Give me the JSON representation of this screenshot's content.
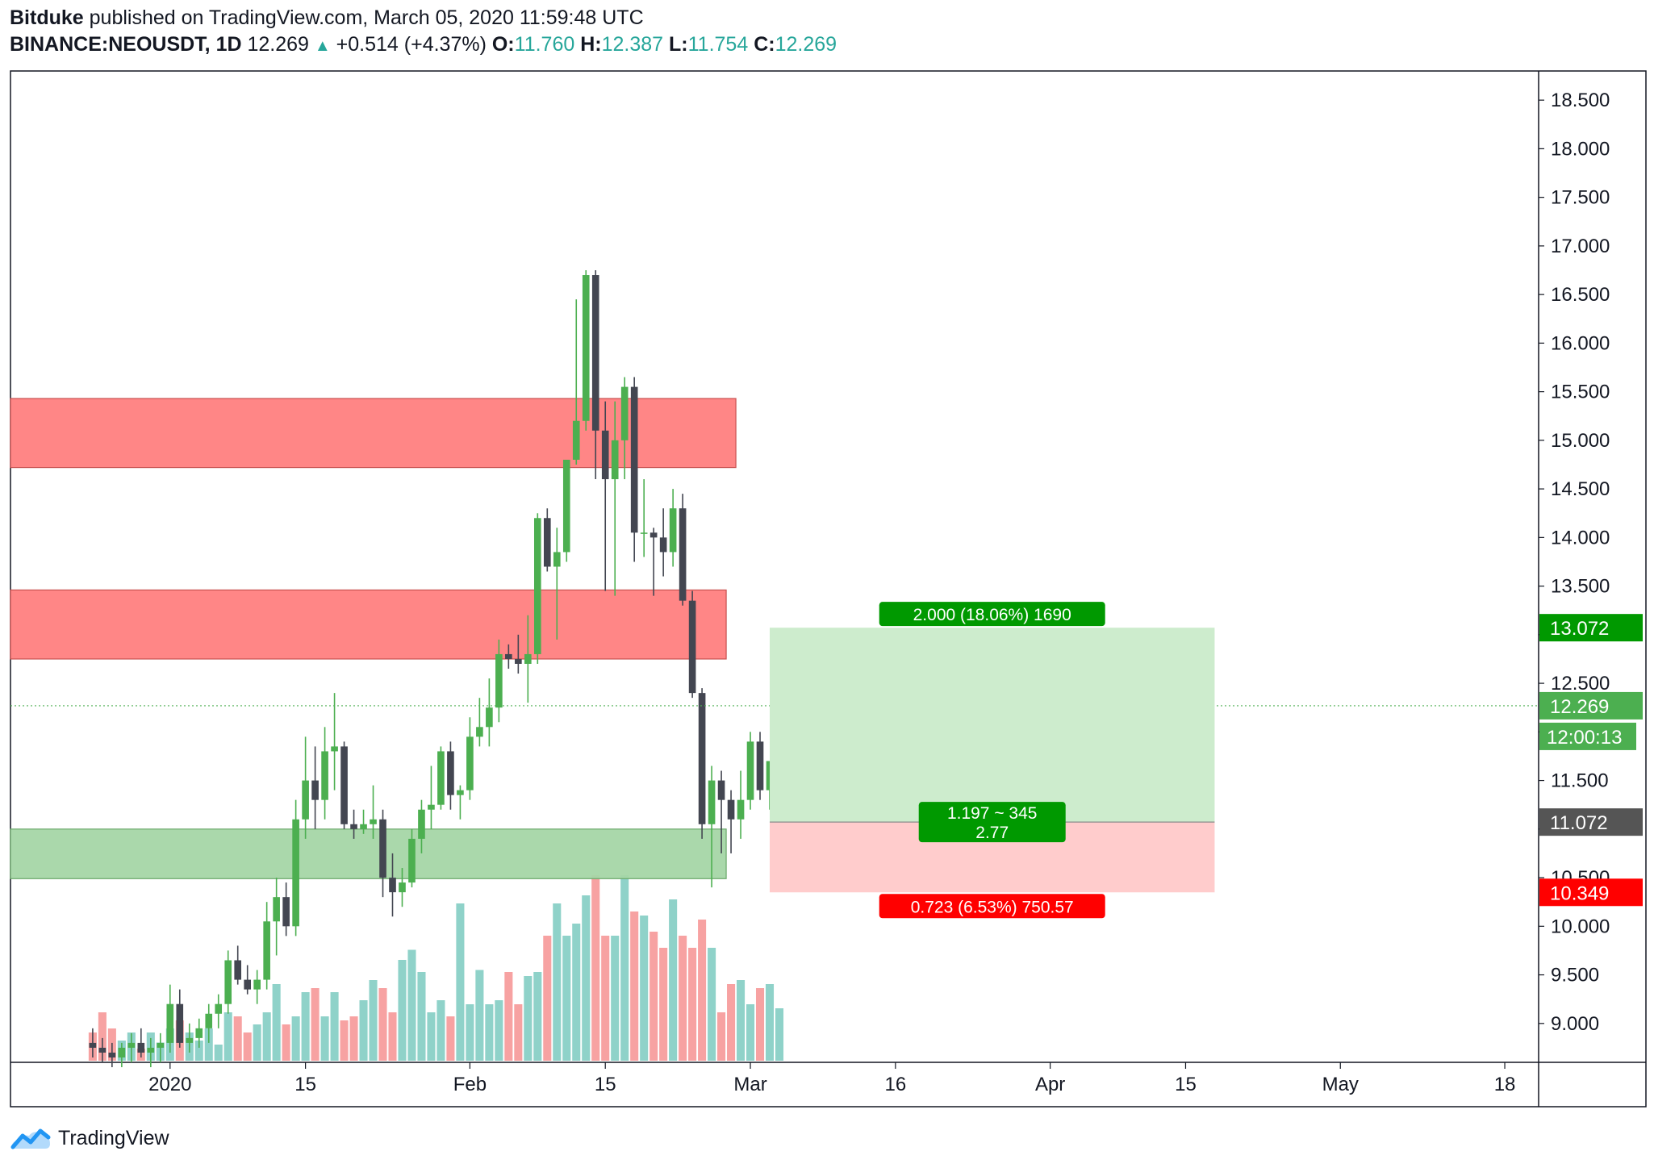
{
  "header": {
    "author": "Bitduke",
    "published_text": "published on TradingView.com, March 05, 2020 11:59:48 UTC",
    "symbol": "BINANCE:NEOUSDT, 1D",
    "last": "12.269",
    "change_arrow": "▲",
    "change": "+0.514 (+4.37%)",
    "o_label": "O:",
    "o": "11.760",
    "h_label": "H:",
    "h": "12.387",
    "l_label": "L:",
    "l": "11.754",
    "c_label": "C:",
    "c": "12.269"
  },
  "footer": {
    "brand": "TradingView",
    "logo_icon": "tradingview-cloud-icon"
  },
  "colors": {
    "bull": "#4caf50",
    "bear": "#434651",
    "vol_up": "#8fd2c9",
    "vol_down": "#f7a2a2",
    "zone_red": "#ff7f7f",
    "zone_green": "#a5d6a7",
    "target_fill": "#cdeccd",
    "stop_fill": "#ffcccc",
    "label_green": "#009900",
    "label_red": "#ff0000",
    "price_label": "#4caf50",
    "entry_label": "#555555"
  },
  "chart_data": {
    "type": "candlestick",
    "title": "BINANCE:NEOUSDT, 1D",
    "ylim": [
      8.6,
      18.8
    ],
    "y_ticks": [
      "18.500",
      "18.000",
      "17.500",
      "17.000",
      "16.500",
      "16.000",
      "15.500",
      "15.000",
      "14.500",
      "14.000",
      "13.500",
      "13.000",
      "12.500",
      "12.000",
      "11.500",
      "11.000",
      "10.500",
      "10.000",
      "9.500",
      "9.000"
    ],
    "x_ticks": [
      {
        "day": 8,
        "label": "2020"
      },
      {
        "day": 22,
        "label": "15"
      },
      {
        "day": 39,
        "label": "Feb"
      },
      {
        "day": 53,
        "label": "15"
      },
      {
        "day": 68,
        "label": "Mar"
      },
      {
        "day": 83,
        "label": "16"
      },
      {
        "day": 99,
        "label": "Apr"
      },
      {
        "day": 113,
        "label": "15"
      },
      {
        "day": 129,
        "label": "May"
      },
      {
        "day": 146,
        "label": "18"
      }
    ],
    "x_range_days": [
      -8.5,
      149.5
    ],
    "ohlc": [
      [
        8.8,
        8.95,
        8.65,
        8.75
      ],
      [
        8.75,
        8.85,
        8.6,
        8.7
      ],
      [
        8.7,
        8.8,
        8.55,
        8.65
      ],
      [
        8.65,
        8.8,
        8.55,
        8.75
      ],
      [
        8.75,
        8.9,
        8.6,
        8.8
      ],
      [
        8.8,
        8.95,
        8.65,
        8.7
      ],
      [
        8.7,
        8.85,
        8.55,
        8.75
      ],
      [
        8.75,
        8.9,
        8.6,
        8.8
      ],
      [
        8.8,
        9.4,
        8.7,
        9.2
      ],
      [
        9.2,
        9.35,
        8.75,
        8.8
      ],
      [
        8.8,
        9.0,
        8.7,
        8.85
      ],
      [
        8.85,
        9.05,
        8.75,
        8.95
      ],
      [
        8.95,
        9.2,
        8.8,
        9.1
      ],
      [
        9.1,
        9.3,
        8.95,
        9.2
      ],
      [
        9.2,
        9.75,
        9.1,
        9.65
      ],
      [
        9.65,
        9.8,
        9.4,
        9.45
      ],
      [
        9.45,
        9.6,
        9.3,
        9.35
      ],
      [
        9.35,
        9.55,
        9.2,
        9.45
      ],
      [
        9.45,
        10.25,
        9.35,
        10.05
      ],
      [
        10.05,
        10.5,
        9.7,
        10.3
      ],
      [
        10.3,
        10.45,
        9.9,
        10.0
      ],
      [
        10.0,
        11.3,
        9.9,
        11.1
      ],
      [
        11.1,
        11.95,
        10.9,
        11.5
      ],
      [
        11.5,
        11.85,
        11.0,
        11.3
      ],
      [
        11.3,
        12.05,
        11.1,
        11.8
      ],
      [
        11.8,
        12.4,
        11.4,
        11.85
      ],
      [
        11.85,
        11.9,
        11.0,
        11.05
      ],
      [
        11.05,
        11.2,
        10.9,
        11.0
      ],
      [
        11.0,
        11.2,
        10.95,
        11.05
      ],
      [
        11.05,
        11.45,
        10.9,
        11.1
      ],
      [
        11.1,
        11.2,
        10.3,
        10.5
      ],
      [
        10.5,
        10.75,
        10.1,
        10.35
      ],
      [
        10.35,
        10.6,
        10.2,
        10.45
      ],
      [
        10.45,
        11.0,
        10.4,
        10.9
      ],
      [
        10.9,
        11.3,
        10.75,
        11.2
      ],
      [
        11.2,
        11.65,
        11.0,
        11.25
      ],
      [
        11.25,
        11.85,
        11.2,
        11.8
      ],
      [
        11.8,
        11.9,
        11.2,
        11.35
      ],
      [
        11.35,
        11.45,
        11.1,
        11.4
      ],
      [
        11.4,
        12.15,
        11.3,
        11.95
      ],
      [
        11.95,
        12.35,
        11.85,
        12.05
      ],
      [
        12.05,
        12.55,
        11.85,
        12.25
      ],
      [
        12.25,
        12.95,
        12.1,
        12.8
      ],
      [
        12.8,
        12.9,
        12.65,
        12.75
      ],
      [
        12.75,
        13.0,
        12.6,
        12.7
      ],
      [
        12.7,
        13.2,
        12.3,
        12.8
      ],
      [
        12.8,
        14.25,
        12.7,
        14.2
      ],
      [
        14.2,
        14.3,
        13.65,
        13.7
      ],
      [
        13.7,
        14.1,
        12.95,
        13.85
      ],
      [
        13.85,
        14.7,
        13.75,
        14.8
      ],
      [
        14.8,
        16.45,
        14.75,
        15.2
      ],
      [
        15.2,
        16.75,
        15.1,
        16.7
      ],
      [
        16.7,
        16.75,
        14.6,
        15.1
      ],
      [
        15.1,
        15.4,
        13.45,
        14.6
      ],
      [
        14.6,
        15.4,
        13.4,
        15.0
      ],
      [
        15.0,
        15.65,
        14.6,
        15.55
      ],
      [
        15.55,
        15.65,
        13.75,
        14.05
      ],
      [
        14.05,
        14.6,
        13.8,
        14.05
      ],
      [
        14.05,
        14.1,
        13.4,
        14.0
      ],
      [
        14.0,
        14.3,
        13.6,
        13.85
      ],
      [
        13.85,
        14.5,
        13.7,
        14.3
      ],
      [
        14.3,
        14.45,
        13.3,
        13.35
      ],
      [
        13.35,
        13.45,
        12.35,
        12.4
      ],
      [
        12.4,
        12.45,
        10.9,
        11.05
      ],
      [
        11.05,
        11.65,
        10.4,
        11.5
      ],
      [
        11.5,
        11.6,
        10.75,
        11.3
      ],
      [
        11.3,
        11.4,
        10.75,
        11.1
      ],
      [
        11.1,
        11.6,
        10.9,
        11.3
      ],
      [
        11.3,
        12.0,
        11.2,
        11.9
      ],
      [
        11.9,
        12.0,
        11.3,
        11.4
      ],
      [
        11.4,
        11.6,
        11.2,
        11.7
      ],
      [
        11.76,
        12.387,
        11.754,
        12.269
      ]
    ],
    "volumes": [
      14,
      24,
      16,
      10,
      14,
      6,
      14,
      9,
      16,
      20,
      14,
      10,
      16,
      8,
      24,
      22,
      14,
      18,
      24,
      38,
      18,
      22,
      34,
      36,
      22,
      34,
      20,
      22,
      30,
      40,
      36,
      24,
      50,
      55,
      44,
      24,
      30,
      22,
      78,
      28,
      45,
      28,
      30,
      44,
      28,
      42,
      44,
      62,
      78,
      62,
      68,
      82,
      92,
      62,
      62,
      92,
      74,
      72,
      64,
      56,
      80,
      62,
      56,
      70,
      56,
      24,
      38,
      40,
      28,
      36,
      38,
      26
    ],
    "zones": [
      {
        "name": "resistance-upper",
        "top": 15.43,
        "bottom": 14.72,
        "x_end_day": 66.5,
        "color": "red"
      },
      {
        "name": "resistance-lower",
        "top": 13.46,
        "bottom": 12.75,
        "x_end_day": 65.5,
        "color": "red"
      },
      {
        "name": "support",
        "top": 11.0,
        "bottom": 10.49,
        "x_end_day": 65.5,
        "color": "green"
      }
    ],
    "long_position": {
      "entry": 11.072,
      "target": 13.072,
      "stop": 10.349,
      "start_day": 70,
      "end_day": 116,
      "target_label": "2.000 (18.06%) 1690",
      "entry_label_line1": "1.197 ~ 345",
      "entry_label_line2": "2.77",
      "stop_label": "0.723 (6.53%) 750.57"
    },
    "last_price": 12.269,
    "axis_labels": {
      "target": "13.072",
      "last": "12.269",
      "countdown": "12:00:13",
      "entry": "11.072",
      "stop": "10.349"
    }
  }
}
